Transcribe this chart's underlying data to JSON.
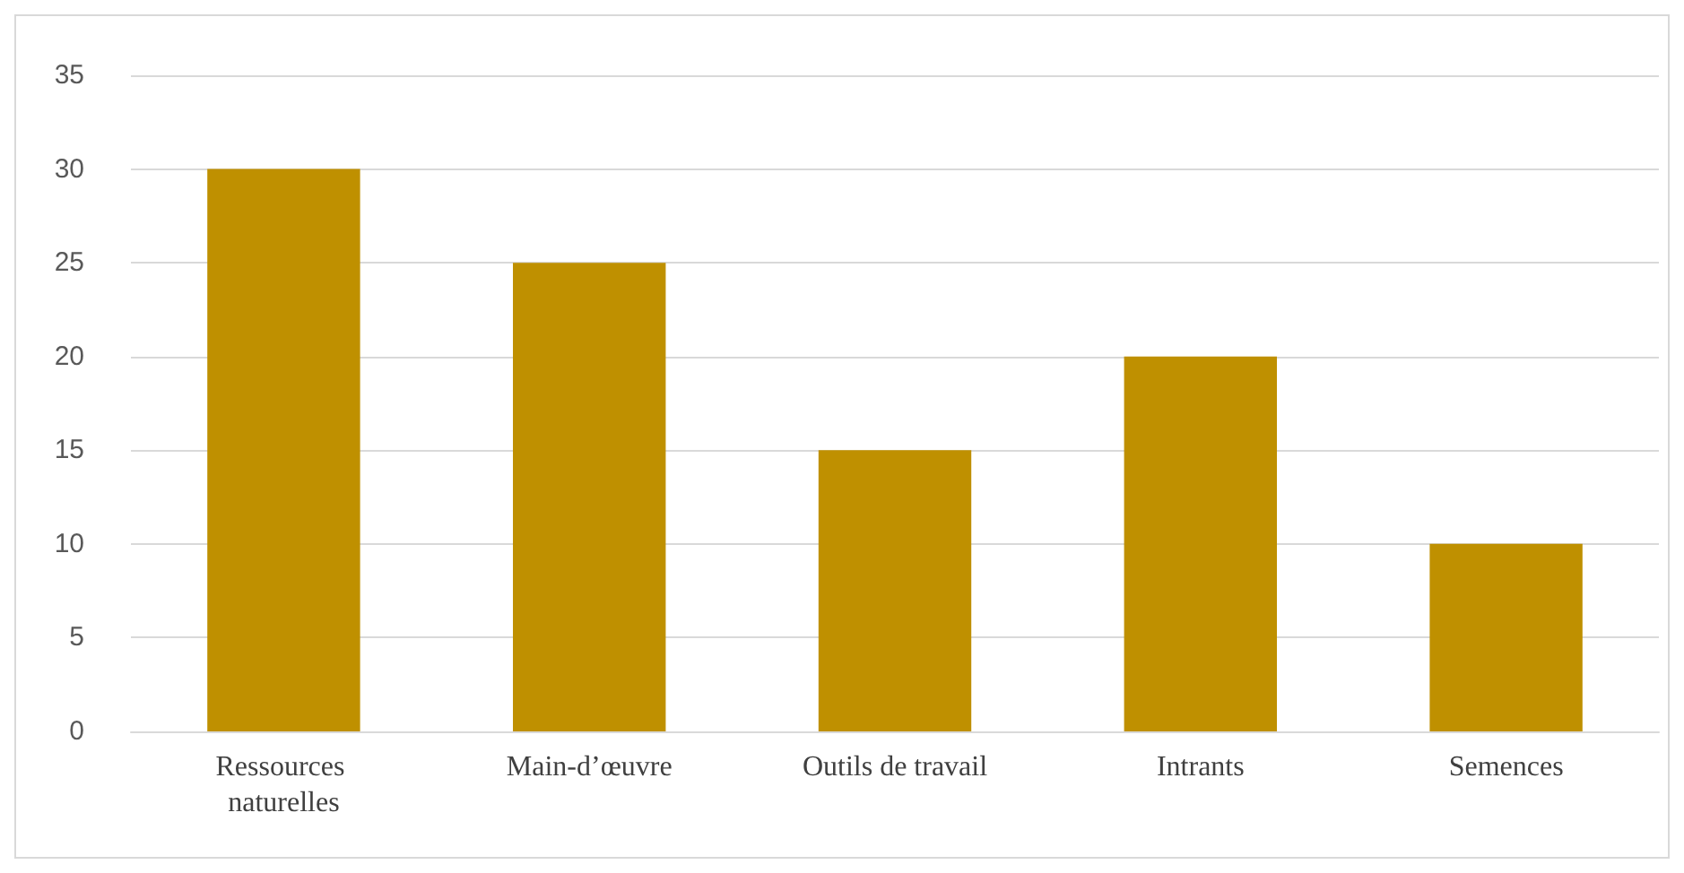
{
  "chart_data": {
    "type": "bar",
    "categories": [
      "Ressources naturelles",
      "Main-d’œuvre",
      "Outils de travail",
      "Intrants",
      "Semences"
    ],
    "values": [
      30,
      25,
      15,
      20,
      10
    ],
    "color": "#bf9000",
    "ylim": [
      0,
      35
    ],
    "yticks": [
      0,
      5,
      10,
      15,
      20,
      25,
      30,
      35
    ],
    "grid": "y"
  }
}
